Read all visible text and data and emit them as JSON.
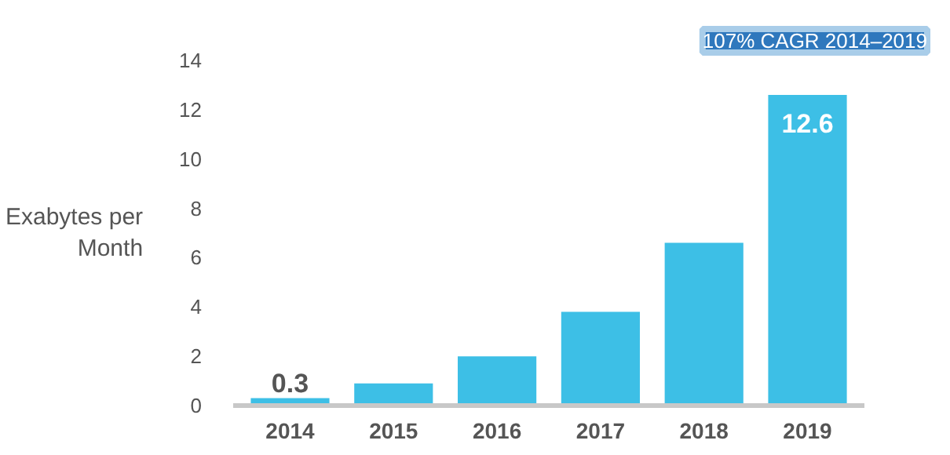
{
  "chart_data": {
    "type": "bar",
    "ylabel": "Exabytes per Month",
    "categories": [
      "2014",
      "2015",
      "2016",
      "2017",
      "2018",
      "2019"
    ],
    "values": [
      0.3,
      0.9,
      2.0,
      3.8,
      6.6,
      12.6
    ],
    "value_labels": [
      "0.3",
      null,
      null,
      null,
      null,
      "12.6"
    ],
    "color": "#3dbfe6",
    "ylim": [
      0,
      14
    ],
    "yticks": [
      0,
      2,
      4,
      6,
      8,
      10,
      12,
      14
    ],
    "grid": false,
    "annotations": [
      "107% CAGR 2014–2019"
    ]
  }
}
